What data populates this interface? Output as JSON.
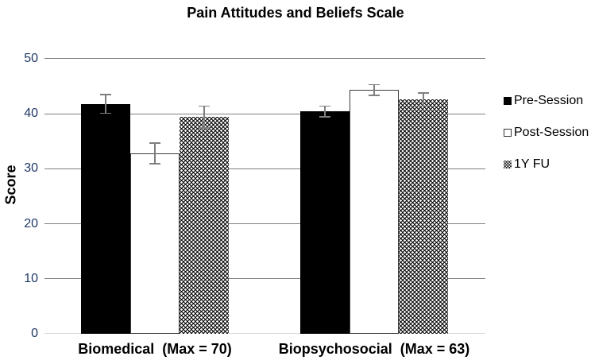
{
  "chart_data": {
    "type": "bar",
    "title": "Pain Attitudes and Beliefs Scale",
    "ylabel": "Score",
    "xlabel": "",
    "ylim": [
      0,
      50
    ],
    "yticks": [
      0,
      10,
      20,
      30,
      40,
      50
    ],
    "grid": true,
    "legend_position": "right",
    "categories": [
      "Biomedical  (Max = 70)",
      "Biopsychosocial  (Max = 63)"
    ],
    "series": [
      {
        "name": "Pre-Session",
        "fill": "solid-black",
        "values": [
          41.8,
          40.4
        ],
        "errors": [
          1.8,
          1.1
        ]
      },
      {
        "name": "Post-Session",
        "fill": "white-outlined",
        "values": [
          32.8,
          44.3
        ],
        "errors": [
          2.0,
          1.1
        ]
      },
      {
        "name": "1Y FU",
        "fill": "checkered-pattern",
        "values": [
          39.4,
          42.6
        ],
        "errors": [
          2.1,
          1.3
        ]
      }
    ]
  },
  "colors": {
    "tick_label": "#1f3864",
    "gridline": "#7f7f7f",
    "baseline": "#d9d9d9",
    "error_bar": "#7f7f7f",
    "bar_black": "#000000",
    "bar_white": "#ffffff",
    "bar_white_border": "#3b3b3b",
    "text": "#000000"
  }
}
